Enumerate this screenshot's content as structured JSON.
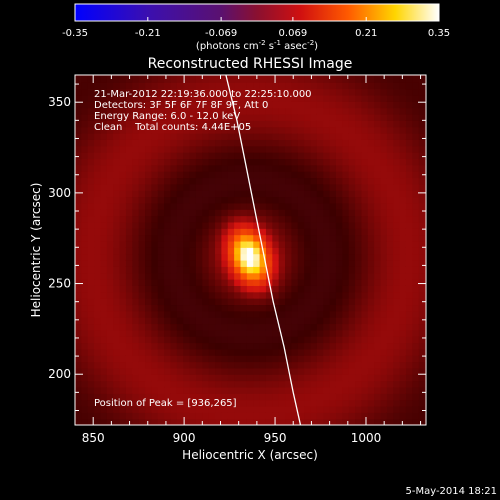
{
  "chart_data": {
    "type": "heatmap",
    "title": "Reconstructed RHESSI Image",
    "xlabel": "Heliocentric X (arcsec)",
    "ylabel": "Heliocentric Y (arcsec)",
    "xlim": [
      840,
      1033
    ],
    "ylim": [
      172,
      365
    ],
    "x_ticks": [
      850,
      900,
      950,
      1000
    ],
    "y_ticks": [
      200,
      250,
      300,
      350
    ],
    "colorbar": {
      "range": [
        -0.35,
        0.35
      ],
      "tick_values": [
        -0.35,
        -0.21,
        -0.069,
        0.069,
        0.21,
        0.35
      ],
      "tick_labels": [
        "-0.35",
        "-0.21",
        "-0.069",
        "0.069",
        "0.21",
        "0.35"
      ],
      "units_label": "(photons cm",
      "units_sup1": "-2",
      "units_mid": " s",
      "units_sup2": "-1",
      "units_mid2": " asec",
      "units_sup3": "-2",
      "units_end": ")"
    },
    "annotations": [
      "21-Mar-2012 22:19:36.000 to 22:25:10.000",
      "Detectors: 3F 5F 6F 7F 8F 9F, Att 0",
      "Energy Range: 6.0 - 12.0 keV",
      "Clean    Total counts: 4.44E+05"
    ],
    "peak_label": "Position of Peak = [936,265]",
    "peak": {
      "x": 936,
      "y": 265,
      "value": 0.35
    },
    "source_sigma_arcsec": {
      "x": 6,
      "y": 9
    },
    "background_level": 0.05,
    "limb_curve": [
      {
        "x": 923,
        "y": 365
      },
      {
        "x": 929,
        "y": 340
      },
      {
        "x": 934,
        "y": 315
      },
      {
        "x": 939,
        "y": 290
      },
      {
        "x": 944,
        "y": 265
      },
      {
        "x": 949,
        "y": 240
      },
      {
        "x": 955,
        "y": 215
      },
      {
        "x": 960,
        "y": 190
      },
      {
        "x": 964,
        "y": 172
      }
    ],
    "footer": "5-May-2014 18:21"
  }
}
